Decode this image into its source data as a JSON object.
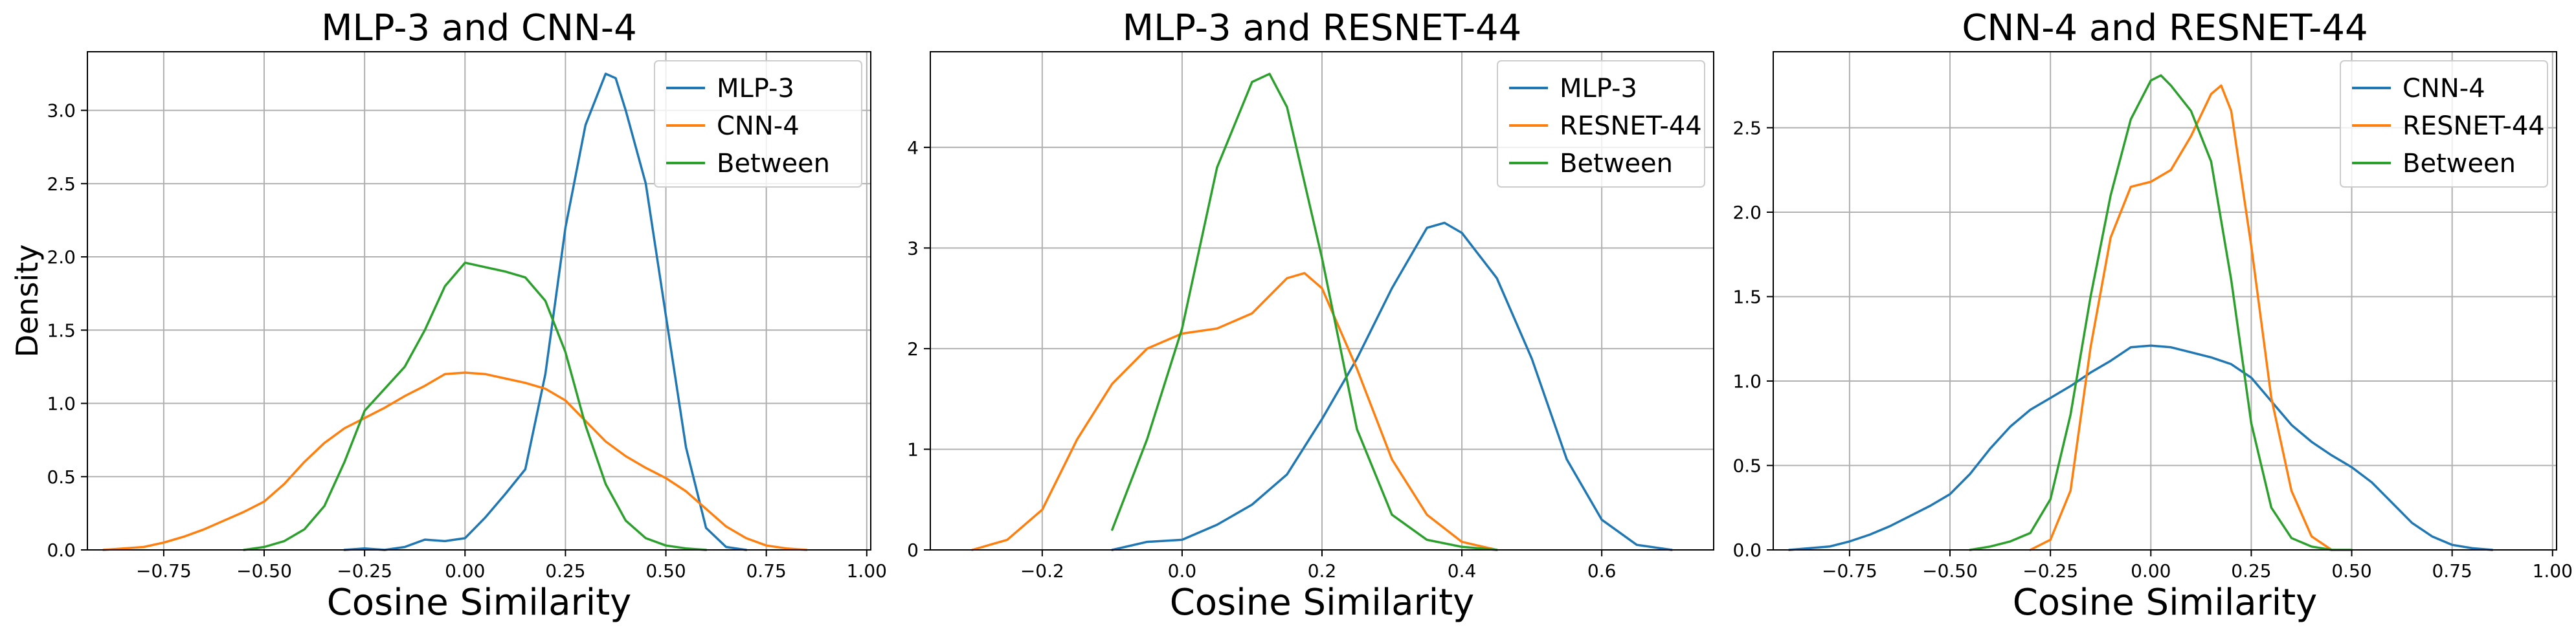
{
  "colors": {
    "blue": "#1f77b4",
    "orange": "#ff7f0e",
    "green": "#2ca02c"
  },
  "chart_data": [
    {
      "type": "line",
      "title": "MLP-3 and CNN-4",
      "xlabel": "Cosine Similarity",
      "ylabel": "Density",
      "xlim": [
        -0.94,
        1.01
      ],
      "ylim": [
        0,
        3.4
      ],
      "xticks": [
        -0.75,
        -0.5,
        -0.25,
        0.0,
        0.25,
        0.5,
        0.75,
        1.0
      ],
      "xtick_labels": [
        "−0.75",
        "−0.50",
        "−0.25",
        "0.00",
        "0.25",
        "0.50",
        "0.75",
        "1.00"
      ],
      "yticks": [
        0,
        0.5,
        1.0,
        1.5,
        2.0,
        2.5,
        3.0
      ],
      "ytick_labels": [
        "0.0",
        "0.5",
        "1.0",
        "1.5",
        "2.0",
        "2.5",
        "3.0"
      ],
      "grid": true,
      "legend": "top-right",
      "series": [
        {
          "name": "MLP-3",
          "color": "#1f77b4",
          "x": [
            -0.3,
            -0.25,
            -0.2,
            -0.15,
            -0.1,
            -0.05,
            0.0,
            0.05,
            0.1,
            0.15,
            0.2,
            0.25,
            0.3,
            0.35,
            0.375,
            0.4,
            0.45,
            0.5,
            0.55,
            0.6,
            0.65,
            0.7
          ],
          "y": [
            0.0,
            0.01,
            0.0,
            0.02,
            0.07,
            0.06,
            0.08,
            0.22,
            0.38,
            0.55,
            1.2,
            2.2,
            2.9,
            3.25,
            3.22,
            3.0,
            2.5,
            1.6,
            0.7,
            0.15,
            0.02,
            0.0
          ]
        },
        {
          "name": "CNN-4",
          "color": "#ff7f0e",
          "x": [
            -0.9,
            -0.85,
            -0.8,
            -0.75,
            -0.7,
            -0.65,
            -0.6,
            -0.55,
            -0.5,
            -0.45,
            -0.4,
            -0.35,
            -0.3,
            -0.25,
            -0.2,
            -0.15,
            -0.1,
            -0.05,
            0.0,
            0.05,
            0.1,
            0.15,
            0.2,
            0.25,
            0.3,
            0.35,
            0.4,
            0.45,
            0.5,
            0.55,
            0.6,
            0.65,
            0.7,
            0.75,
            0.8,
            0.85
          ],
          "y": [
            0.0,
            0.01,
            0.02,
            0.05,
            0.09,
            0.14,
            0.2,
            0.26,
            0.33,
            0.45,
            0.6,
            0.73,
            0.83,
            0.9,
            0.97,
            1.05,
            1.12,
            1.2,
            1.21,
            1.2,
            1.17,
            1.14,
            1.1,
            1.02,
            0.88,
            0.74,
            0.64,
            0.56,
            0.49,
            0.4,
            0.28,
            0.16,
            0.08,
            0.03,
            0.01,
            0.0
          ]
        },
        {
          "name": "Between",
          "color": "#2ca02c",
          "x": [
            -0.55,
            -0.5,
            -0.45,
            -0.4,
            -0.35,
            -0.3,
            -0.25,
            -0.2,
            -0.15,
            -0.1,
            -0.05,
            0.0,
            0.05,
            0.1,
            0.15,
            0.2,
            0.25,
            0.3,
            0.35,
            0.4,
            0.45,
            0.5,
            0.55,
            0.6
          ],
          "y": [
            0.0,
            0.02,
            0.06,
            0.14,
            0.3,
            0.6,
            0.95,
            1.1,
            1.25,
            1.5,
            1.8,
            1.96,
            1.93,
            1.9,
            1.86,
            1.7,
            1.35,
            0.85,
            0.45,
            0.2,
            0.08,
            0.03,
            0.01,
            0.0
          ]
        }
      ]
    },
    {
      "type": "line",
      "title": "MLP-3 and RESNET-44",
      "xlabel": "Cosine Similarity",
      "ylabel": "",
      "xlim": [
        -0.36,
        0.76
      ],
      "ylim": [
        0,
        4.95
      ],
      "xticks": [
        -0.2,
        0.0,
        0.2,
        0.4,
        0.6
      ],
      "xtick_labels": [
        "−0.2",
        "0.0",
        "0.2",
        "0.4",
        "0.6"
      ],
      "yticks": [
        0,
        1,
        2,
        3,
        4
      ],
      "ytick_labels": [
        "0",
        "1",
        "2",
        "3",
        "4"
      ],
      "grid": true,
      "legend": "top-right",
      "series": [
        {
          "name": "MLP-3",
          "color": "#1f77b4",
          "x": [
            -0.1,
            -0.05,
            0.0,
            0.05,
            0.1,
            0.15,
            0.2,
            0.25,
            0.3,
            0.35,
            0.375,
            0.4,
            0.45,
            0.5,
            0.55,
            0.6,
            0.65,
            0.7
          ],
          "y": [
            0.0,
            0.08,
            0.1,
            0.25,
            0.45,
            0.75,
            1.3,
            1.9,
            2.6,
            3.2,
            3.25,
            3.15,
            2.7,
            1.9,
            0.9,
            0.3,
            0.05,
            0.0
          ]
        },
        {
          "name": "RESNET-44",
          "color": "#ff7f0e",
          "x": [
            -0.3,
            -0.25,
            -0.2,
            -0.15,
            -0.1,
            -0.05,
            0.0,
            0.05,
            0.1,
            0.15,
            0.175,
            0.2,
            0.25,
            0.3,
            0.35,
            0.4,
            0.45
          ],
          "y": [
            0.0,
            0.1,
            0.4,
            1.1,
            1.65,
            2.0,
            2.15,
            2.2,
            2.35,
            2.7,
            2.75,
            2.6,
            1.8,
            0.9,
            0.35,
            0.08,
            0.0
          ]
        },
        {
          "name": "Between",
          "color": "#2ca02c",
          "x": [
            -0.1,
            -0.05,
            0.0,
            0.05,
            0.1,
            0.125,
            0.15,
            0.2,
            0.25,
            0.3,
            0.35,
            0.4,
            0.45
          ],
          "y": [
            0.2,
            1.1,
            2.2,
            3.8,
            4.65,
            4.73,
            4.4,
            2.9,
            1.2,
            0.35,
            0.1,
            0.03,
            0.0
          ]
        }
      ]
    },
    {
      "type": "line",
      "title": "CNN-4 and RESNET-44",
      "xlabel": "Cosine Similarity",
      "ylabel": "",
      "xlim": [
        -0.94,
        1.01
      ],
      "ylim": [
        0,
        2.95
      ],
      "xticks": [
        -0.75,
        -0.5,
        -0.25,
        0.0,
        0.25,
        0.5,
        0.75,
        1.0
      ],
      "xtick_labels": [
        "−0.75",
        "−0.50",
        "−0.25",
        "0.00",
        "0.25",
        "0.50",
        "0.75",
        "1.00"
      ],
      "yticks": [
        0,
        0.5,
        1.0,
        1.5,
        2.0,
        2.5
      ],
      "ytick_labels": [
        "0.0",
        "0.5",
        "1.0",
        "1.5",
        "2.0",
        "2.5"
      ],
      "grid": true,
      "legend": "top-right",
      "series": [
        {
          "name": "CNN-4",
          "color": "#1f77b4",
          "x": [
            -0.9,
            -0.85,
            -0.8,
            -0.75,
            -0.7,
            -0.65,
            -0.6,
            -0.55,
            -0.5,
            -0.45,
            -0.4,
            -0.35,
            -0.3,
            -0.25,
            -0.2,
            -0.15,
            -0.1,
            -0.05,
            0.0,
            0.05,
            0.1,
            0.15,
            0.2,
            0.25,
            0.3,
            0.35,
            0.4,
            0.45,
            0.5,
            0.55,
            0.6,
            0.65,
            0.7,
            0.75,
            0.8,
            0.85
          ],
          "y": [
            0.0,
            0.01,
            0.02,
            0.05,
            0.09,
            0.14,
            0.2,
            0.26,
            0.33,
            0.45,
            0.6,
            0.73,
            0.83,
            0.9,
            0.97,
            1.05,
            1.12,
            1.2,
            1.21,
            1.2,
            1.17,
            1.14,
            1.1,
            1.02,
            0.88,
            0.74,
            0.64,
            0.56,
            0.49,
            0.4,
            0.28,
            0.16,
            0.08,
            0.03,
            0.01,
            0.0
          ]
        },
        {
          "name": "RESNET-44",
          "color": "#ff7f0e",
          "x": [
            -0.3,
            -0.25,
            -0.2,
            -0.15,
            -0.1,
            -0.05,
            0.0,
            0.05,
            0.1,
            0.15,
            0.175,
            0.2,
            0.25,
            0.3,
            0.35,
            0.4,
            0.45
          ],
          "y": [
            0.0,
            0.06,
            0.35,
            1.2,
            1.85,
            2.15,
            2.18,
            2.25,
            2.45,
            2.7,
            2.75,
            2.6,
            1.8,
            0.9,
            0.35,
            0.08,
            0.0
          ]
        },
        {
          "name": "Between",
          "color": "#2ca02c",
          "x": [
            -0.45,
            -0.4,
            -0.35,
            -0.3,
            -0.25,
            -0.2,
            -0.15,
            -0.1,
            -0.05,
            0.0,
            0.025,
            0.05,
            0.1,
            0.15,
            0.2,
            0.25,
            0.3,
            0.35,
            0.4,
            0.45,
            0.5
          ],
          "y": [
            0.0,
            0.02,
            0.05,
            0.1,
            0.3,
            0.8,
            1.5,
            2.1,
            2.55,
            2.78,
            2.81,
            2.75,
            2.6,
            2.3,
            1.6,
            0.75,
            0.25,
            0.07,
            0.02,
            0.0,
            0.0
          ]
        }
      ]
    }
  ]
}
